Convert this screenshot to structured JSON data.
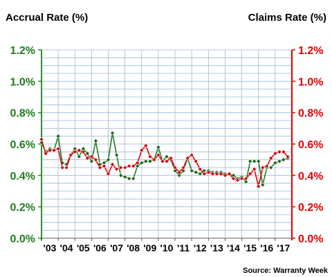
{
  "chart_data": {
    "type": "line",
    "title_left": "Accrual Rate (%)",
    "title_right": "Claims Rate (%)",
    "source": "Source: Warranty Week",
    "x_tick_labels": [
      "'03",
      "'04",
      "'05",
      "'06",
      "'07",
      "'08",
      "'09",
      "'10",
      "'11",
      "'12",
      "'13",
      "'14",
      "'15",
      "'16",
      "'17"
    ],
    "x_range": [
      2003.0,
      2018.0
    ],
    "ylim": [
      0.0,
      1.2
    ],
    "y_ticks": [
      "0.0%",
      "0.2%",
      "0.4%",
      "0.6%",
      "0.8%",
      "1.0%",
      "1.2%"
    ],
    "y_tick_values": [
      0.0,
      0.2,
      0.4,
      0.6,
      0.8,
      1.0,
      1.2
    ],
    "grid": true,
    "colors": {
      "accrual": "#1f7a1f",
      "claims": "#e00000",
      "accrual_marker": "#156015",
      "claims_marker": "#cc0000",
      "grid": "#9fb7d6",
      "axis_left": "#2e8b2e",
      "axis_right": "#e00000"
    },
    "series": [
      {
        "name": "Accrual Rate (%)",
        "axis": "left",
        "x": [
          2003.0,
          2003.25,
          2003.5,
          2003.75,
          2004.0,
          2004.25,
          2004.5,
          2004.75,
          2005.0,
          2005.25,
          2005.5,
          2005.75,
          2006.0,
          2006.25,
          2006.5,
          2006.75,
          2007.0,
          2007.25,
          2007.5,
          2007.75,
          2008.0,
          2008.25,
          2008.5,
          2008.75,
          2009.0,
          2009.25,
          2009.5,
          2009.75,
          2010.0,
          2010.25,
          2010.5,
          2010.75,
          2011.0,
          2011.25,
          2011.5,
          2011.75,
          2012.0,
          2012.25,
          2012.5,
          2012.75,
          2013.0,
          2013.25,
          2013.5,
          2013.75,
          2014.0,
          2014.25,
          2014.5,
          2014.75,
          2015.0,
          2015.25,
          2015.5,
          2015.75,
          2016.0,
          2016.25,
          2016.5,
          2016.75,
          2017.0,
          2017.25,
          2017.5,
          2017.75
        ],
        "values": [
          0.61,
          0.55,
          0.57,
          0.56,
          0.65,
          0.48,
          0.47,
          0.53,
          0.57,
          0.52,
          0.57,
          0.54,
          0.49,
          0.62,
          0.47,
          0.48,
          0.5,
          0.67,
          0.53,
          0.4,
          0.39,
          0.38,
          0.38,
          0.46,
          0.48,
          0.49,
          0.49,
          0.5,
          0.58,
          0.49,
          0.52,
          0.5,
          0.43,
          0.4,
          0.43,
          0.51,
          0.43,
          0.42,
          0.41,
          0.43,
          0.43,
          0.42,
          0.42,
          0.42,
          0.41,
          0.41,
          0.4,
          0.38,
          0.39,
          0.36,
          0.49,
          0.49,
          0.49,
          0.34,
          0.45,
          0.45,
          0.48,
          0.49,
          0.5,
          0.51
        ]
      },
      {
        "name": "Claims Rate (%)",
        "axis": "right",
        "x": [
          2003.0,
          2003.25,
          2003.5,
          2003.75,
          2004.0,
          2004.25,
          2004.5,
          2004.75,
          2005.0,
          2005.25,
          2005.5,
          2005.75,
          2006.0,
          2006.25,
          2006.5,
          2006.75,
          2007.0,
          2007.25,
          2007.5,
          2007.75,
          2008.0,
          2008.25,
          2008.5,
          2008.75,
          2009.0,
          2009.25,
          2009.5,
          2009.75,
          2010.0,
          2010.25,
          2010.5,
          2010.75,
          2011.0,
          2011.25,
          2011.5,
          2011.75,
          2012.0,
          2012.25,
          2012.5,
          2012.75,
          2013.0,
          2013.25,
          2013.5,
          2013.75,
          2014.0,
          2014.25,
          2014.5,
          2014.75,
          2015.0,
          2015.25,
          2015.5,
          2015.75,
          2016.0,
          2016.25,
          2016.5,
          2016.75,
          2017.0,
          2017.25,
          2017.5,
          2017.75
        ],
        "values": [
          0.63,
          0.54,
          0.56,
          0.56,
          0.57,
          0.45,
          0.45,
          0.53,
          0.55,
          0.56,
          0.55,
          0.51,
          0.52,
          0.5,
          0.45,
          0.46,
          0.41,
          0.47,
          0.44,
          0.45,
          0.45,
          0.46,
          0.46,
          0.48,
          0.56,
          0.59,
          0.52,
          0.5,
          0.53,
          0.49,
          0.49,
          0.51,
          0.45,
          0.42,
          0.45,
          0.51,
          0.53,
          0.49,
          0.44,
          0.41,
          0.42,
          0.41,
          0.41,
          0.41,
          0.4,
          0.41,
          0.38,
          0.37,
          0.38,
          0.38,
          0.41,
          0.44,
          0.33,
          0.45,
          0.46,
          0.51,
          0.54,
          0.55,
          0.55,
          0.52
        ]
      }
    ]
  }
}
